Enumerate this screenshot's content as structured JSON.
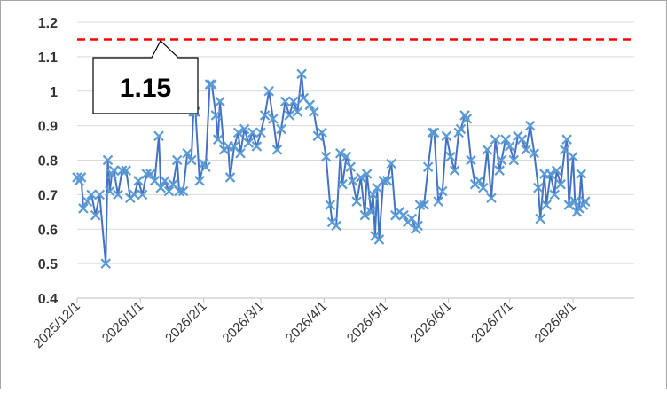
{
  "chart_data": {
    "type": "line",
    "title": "",
    "xlabel": "",
    "ylabel": "",
    "ylim": [
      0.4,
      1.2
    ],
    "y_ticks": [
      "0.4",
      "0.5",
      "0.6",
      "0.7",
      "0.8",
      "0.9",
      "1",
      "1.1",
      "1.2"
    ],
    "x_range": [
      "2025-12-01",
      "2026-08-31"
    ],
    "x_ticks": [
      {
        "date": "2025-12-01",
        "label": "2025/12/1"
      },
      {
        "date": "2026-01-01",
        "label": "2026/1/1"
      },
      {
        "date": "2026-02-01",
        "label": "2026/2/1"
      },
      {
        "date": "2026-03-01",
        "label": "2026/3/1"
      },
      {
        "date": "2026-04-01",
        "label": "2026/4/1"
      },
      {
        "date": "2026-05-01",
        "label": "2026/5/1"
      },
      {
        "date": "2026-06-01",
        "label": "2026/6/1"
      },
      {
        "date": "2026-07-01",
        "label": "2026/7/1"
      },
      {
        "date": "2026-08-01",
        "label": "2026/8/1"
      }
    ],
    "grid": true,
    "legend": "none",
    "series_color": "#4472c4",
    "marker": "x",
    "reference_line": {
      "value": 1.15,
      "label": "1.15",
      "color": "#ff0000",
      "style": "dashed"
    },
    "points": [
      [
        "2025-12-01",
        0.75
      ],
      [
        "2025-12-02",
        0.74
      ],
      [
        "2025-12-03",
        0.75
      ],
      [
        "2025-12-04",
        0.66
      ],
      [
        "2025-12-06",
        0.68
      ],
      [
        "2025-12-08",
        0.7
      ],
      [
        "2025-12-10",
        0.64
      ],
      [
        "2025-12-12",
        0.7
      ],
      [
        "2025-12-15",
        0.5
      ],
      [
        "2025-12-16",
        0.8
      ],
      [
        "2025-12-17",
        0.71
      ],
      [
        "2025-12-18",
        0.76
      ],
      [
        "2025-12-19",
        0.77
      ],
      [
        "2025-12-21",
        0.7
      ],
      [
        "2025-12-23",
        0.77
      ],
      [
        "2025-12-25",
        0.77
      ],
      [
        "2025-12-27",
        0.69
      ],
      [
        "2025-12-29",
        0.7
      ],
      [
        "2025-12-31",
        0.74
      ],
      [
        "2026-01-02",
        0.7
      ],
      [
        "2026-01-04",
        0.76
      ],
      [
        "2026-01-06",
        0.76
      ],
      [
        "2026-01-08",
        0.74
      ],
      [
        "2026-01-10",
        0.87
      ],
      [
        "2026-01-11",
        0.72
      ],
      [
        "2026-01-13",
        0.74
      ],
      [
        "2026-01-15",
        0.71
      ],
      [
        "2026-01-17",
        0.73
      ],
      [
        "2026-01-19",
        0.8
      ],
      [
        "2026-01-20",
        0.71
      ],
      [
        "2026-01-22",
        0.71
      ],
      [
        "2026-01-24",
        0.82
      ],
      [
        "2026-01-26",
        0.8
      ],
      [
        "2026-01-27",
        0.94
      ],
      [
        "2026-01-28",
        0.94
      ],
      [
        "2026-01-30",
        0.74
      ],
      [
        "2026-02-01",
        0.79
      ],
      [
        "2026-02-02",
        0.78
      ],
      [
        "2026-02-04",
        1.02
      ],
      [
        "2026-02-05",
        1.02
      ],
      [
        "2026-02-07",
        0.93
      ],
      [
        "2026-02-08",
        0.86
      ],
      [
        "2026-02-09",
        0.97
      ],
      [
        "2026-02-11",
        0.83
      ],
      [
        "2026-02-13",
        0.84
      ],
      [
        "2026-02-14",
        0.75
      ],
      [
        "2026-02-16",
        0.84
      ],
      [
        "2026-02-18",
        0.88
      ],
      [
        "2026-02-19",
        0.82
      ],
      [
        "2026-02-21",
        0.89
      ],
      [
        "2026-02-23",
        0.85
      ],
      [
        "2026-02-25",
        0.88
      ],
      [
        "2026-02-27",
        0.84
      ],
      [
        "2026-03-01",
        0.88
      ],
      [
        "2026-03-03",
        0.93
      ],
      [
        "2026-03-05",
        1.0
      ],
      [
        "2026-03-07",
        0.92
      ],
      [
        "2026-03-09",
        0.83
      ],
      [
        "2026-03-11",
        0.89
      ],
      [
        "2026-03-13",
        0.97
      ],
      [
        "2026-03-15",
        0.93
      ],
      [
        "2026-03-17",
        0.97
      ],
      [
        "2026-03-19",
        0.94
      ],
      [
        "2026-03-21",
        1.05
      ],
      [
        "2026-03-22",
        0.98
      ],
      [
        "2026-03-25",
        0.96
      ],
      [
        "2026-03-27",
        0.94
      ],
      [
        "2026-03-29",
        0.87
      ],
      [
        "2026-03-31",
        0.88
      ],
      [
        "2026-04-02",
        0.81
      ],
      [
        "2026-04-04",
        0.67
      ],
      [
        "2026-04-05",
        0.62
      ],
      [
        "2026-04-07",
        0.61
      ],
      [
        "2026-04-09",
        0.82
      ],
      [
        "2026-04-10",
        0.73
      ],
      [
        "2026-04-12",
        0.81
      ],
      [
        "2026-04-14",
        0.78
      ],
      [
        "2026-04-15",
        0.74
      ],
      [
        "2026-04-17",
        0.68
      ],
      [
        "2026-04-19",
        0.75
      ],
      [
        "2026-04-21",
        0.64
      ],
      [
        "2026-04-22",
        0.76
      ],
      [
        "2026-04-24",
        0.65
      ],
      [
        "2026-04-25",
        0.7
      ],
      [
        "2026-04-26",
        0.58
      ],
      [
        "2026-04-27",
        0.72
      ],
      [
        "2026-04-28",
        0.57
      ],
      [
        "2026-04-30",
        0.74
      ],
      [
        "2026-05-02",
        0.74
      ],
      [
        "2026-05-04",
        0.79
      ],
      [
        "2026-05-06",
        0.64
      ],
      [
        "2026-05-08",
        0.65
      ],
      [
        "2026-05-10",
        0.64
      ],
      [
        "2026-05-12",
        0.62
      ],
      [
        "2026-05-14",
        0.63
      ],
      [
        "2026-05-16",
        0.6
      ],
      [
        "2026-05-17",
        0.61
      ],
      [
        "2026-05-18",
        0.67
      ],
      [
        "2026-05-20",
        0.67
      ],
      [
        "2026-05-22",
        0.78
      ],
      [
        "2026-05-24",
        0.88
      ],
      [
        "2026-05-25",
        0.88
      ],
      [
        "2026-05-27",
        0.68
      ],
      [
        "2026-05-29",
        0.71
      ],
      [
        "2026-05-31",
        0.87
      ],
      [
        "2026-06-02",
        0.81
      ],
      [
        "2026-06-04",
        0.77
      ],
      [
        "2026-06-06",
        0.88
      ],
      [
        "2026-06-07",
        0.89
      ],
      [
        "2026-06-09",
        0.93
      ],
      [
        "2026-06-10",
        0.92
      ],
      [
        "2026-06-12",
        0.8
      ],
      [
        "2026-06-14",
        0.73
      ],
      [
        "2026-06-16",
        0.74
      ],
      [
        "2026-06-18",
        0.72
      ],
      [
        "2026-06-20",
        0.83
      ],
      [
        "2026-06-22",
        0.69
      ],
      [
        "2026-06-24",
        0.86
      ],
      [
        "2026-06-26",
        0.77
      ],
      [
        "2026-06-27",
        0.8
      ],
      [
        "2026-06-29",
        0.86
      ],
      [
        "2026-07-01",
        0.84
      ],
      [
        "2026-07-03",
        0.8
      ],
      [
        "2026-07-05",
        0.87
      ],
      [
        "2026-07-07",
        0.86
      ],
      [
        "2026-07-09",
        0.83
      ],
      [
        "2026-07-11",
        0.9
      ],
      [
        "2026-07-13",
        0.82
      ],
      [
        "2026-07-15",
        0.72
      ],
      [
        "2026-07-16",
        0.63
      ],
      [
        "2026-07-18",
        0.76
      ],
      [
        "2026-07-19",
        0.67
      ],
      [
        "2026-07-21",
        0.76
      ],
      [
        "2026-07-23",
        0.7
      ],
      [
        "2026-07-24",
        0.77
      ],
      [
        "2026-07-26",
        0.73
      ],
      [
        "2026-07-28",
        0.83
      ],
      [
        "2026-07-29",
        0.86
      ],
      [
        "2026-07-30",
        0.67
      ],
      [
        "2026-08-01",
        0.81
      ],
      [
        "2026-08-02",
        0.68
      ],
      [
        "2026-08-03",
        0.65
      ],
      [
        "2026-08-04",
        0.66
      ],
      [
        "2026-08-05",
        0.76
      ],
      [
        "2026-08-06",
        0.67
      ],
      [
        "2026-08-07",
        0.68
      ]
    ]
  }
}
